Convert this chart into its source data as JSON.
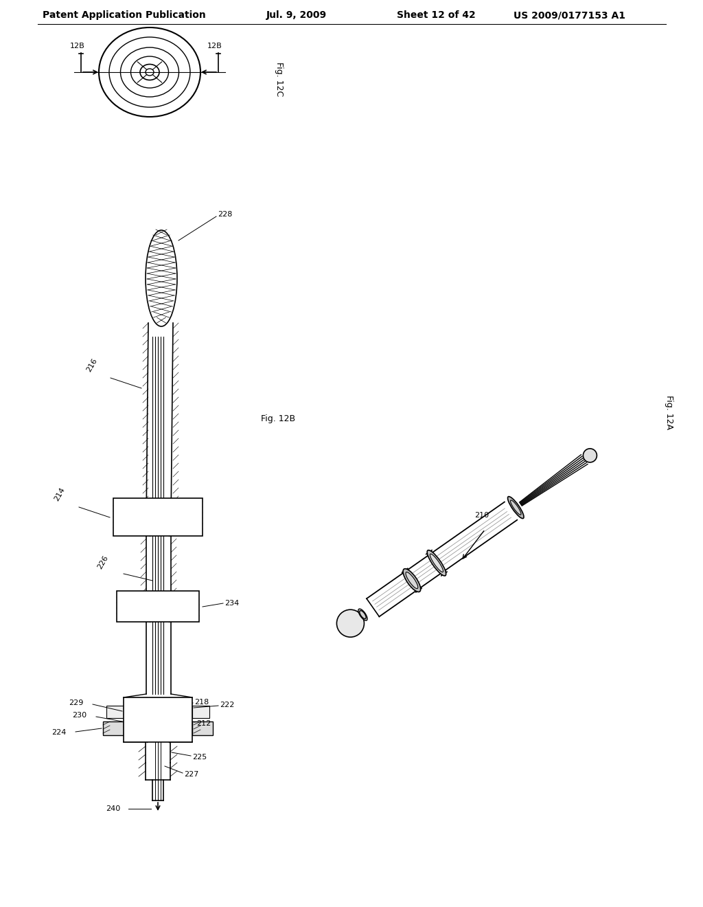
{
  "bg_color": "#ffffff",
  "header_left": "Patent Application Publication",
  "header_mid": "Jul. 9, 2009",
  "header_right_sheet": "Sheet 12 of 42",
  "header_right_pub": "US 2009/0177153 A1",
  "fig_label_12C": "Fig. 12C",
  "fig_label_12B": "Fig. 12B",
  "fig_label_12A": "Fig. 12A"
}
